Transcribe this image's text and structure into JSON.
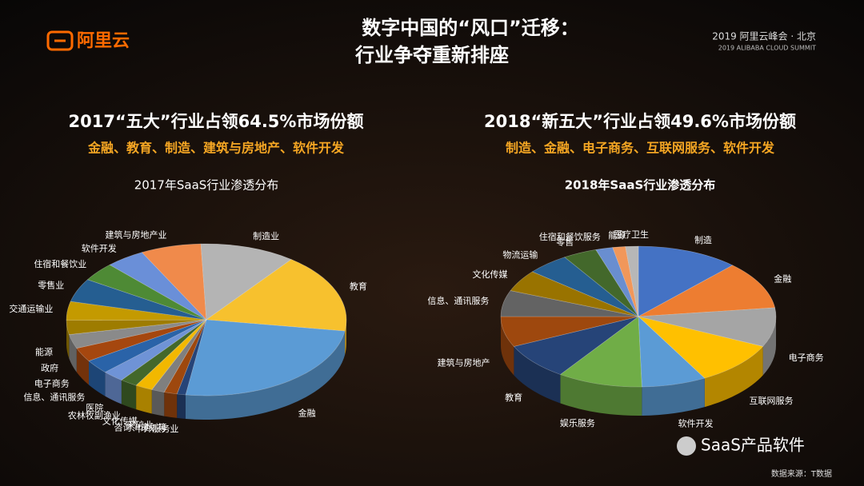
{
  "header": {
    "logo": "阿里云",
    "title_line1": "数字中国的“风口”迁移：",
    "title_line2": "行业争夺重新排座",
    "event_cn": "2019 阿里云峰会 · 北京",
    "event_en": "2019 ALIBABA CLOUD SUMMIT"
  },
  "sections": [
    {
      "heading": "2017“五大”行业占领64.5%市场份额",
      "subtitle": "金融、教育、制造、建筑与房地产、软件开发"
    },
    {
      "heading": "2018“新五大”行业占领49.6%市场份额",
      "subtitle": "制造、金融、电子商务、互联网服务、软件开发"
    }
  ],
  "chart_data": [
    {
      "type": "pie",
      "title": "2017年SaaS行业渗透分布",
      "categories": [
        "建筑与房地产业",
        "制造业",
        "教育",
        "金融",
        "中介服务业",
        "咨询、策划等",
        "采矿业",
        "文化传媒",
        "农林牧副渔业",
        "医院",
        "信息、通讯服务",
        "电子商务",
        "政府",
        "能源",
        "交通运输业",
        "零售业",
        "住宿和餐饮业",
        "软件开发"
      ],
      "values": [
        7,
        11,
        17,
        25,
        1,
        1.5,
        1.5,
        2,
        2,
        2.5,
        3,
        3,
        3,
        3,
        4,
        5,
        4,
        4.5
      ],
      "colors": [
        "#f08a4b",
        "#b4b4b4",
        "#f7c12e",
        "#5b9bd5",
        "#264478",
        "#9e480e",
        "#7f7f7f",
        "#f2b800",
        "#43682b",
        "#6f93d6",
        "#2a63a8",
        "#a5470f",
        "#8a8a8a",
        "#9e7c00",
        "#c49a00",
        "#255e91",
        "#4e8a35",
        "#6a8fd8"
      ]
    },
    {
      "type": "pie",
      "title": "2018年SaaS行业渗透分布",
      "categories": [
        "制造",
        "金融",
        "电子商务",
        "互联网服务",
        "软件开发",
        "娱乐服务",
        "教育",
        "建筑与房地产",
        "信息、通讯服务",
        "文化传媒",
        "物流运输",
        "零售",
        "住宿和餐饮服务",
        "能源",
        "医疗卫生"
      ],
      "values": [
        12,
        11,
        9,
        10,
        7.6,
        10,
        8.4,
        7,
        6,
        5,
        5,
        4,
        2,
        1.5,
        1.5
      ],
      "colors": [
        "#4472c4",
        "#ed7d31",
        "#a5a5a5",
        "#ffc000",
        "#5b9bd5",
        "#70ad47",
        "#264478",
        "#9e480e",
        "#636363",
        "#997300",
        "#255e91",
        "#43682b",
        "#698ed0",
        "#f1975a",
        "#b7b7b7"
      ]
    }
  ],
  "footer": {
    "watermark": "SaaS产品软件",
    "source": "数据来源：T数据"
  }
}
